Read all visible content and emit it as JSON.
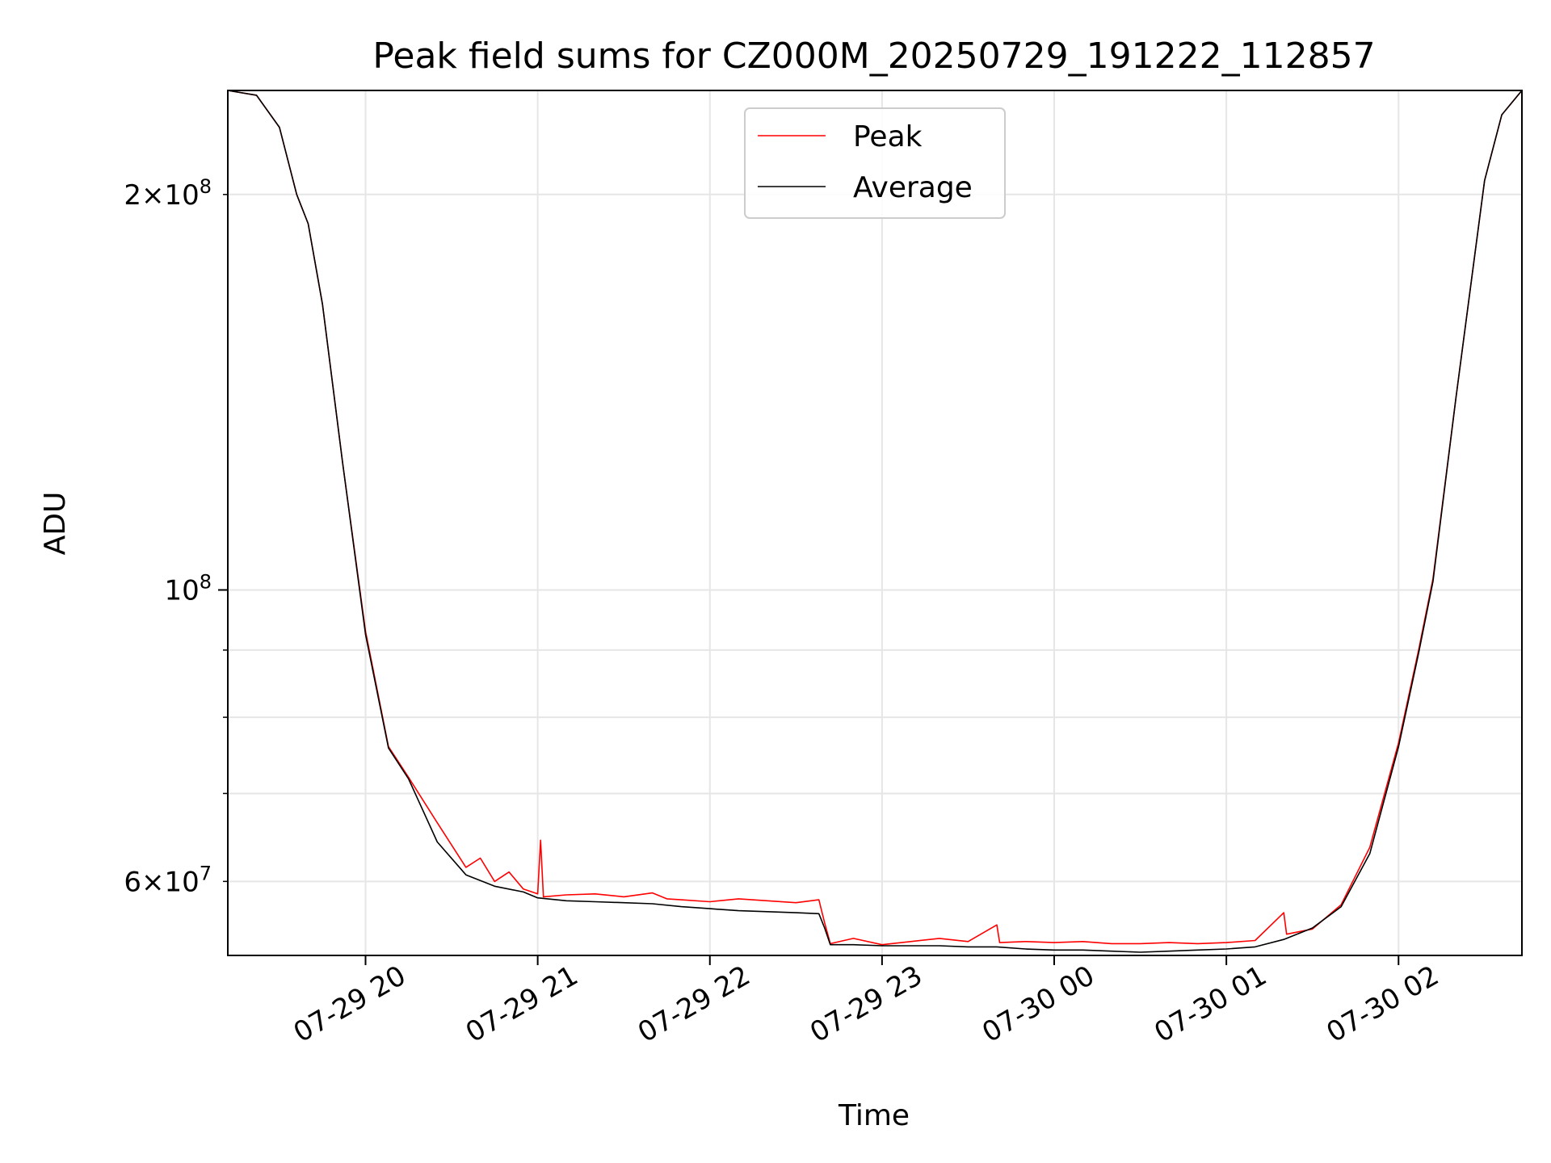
{
  "chart_data": {
    "type": "line",
    "title": "Peak field sums for CZ000M_20250729_191222_112857",
    "xlabel": "Time",
    "ylabel": "ADU",
    "x_axis": {
      "type": "time",
      "range": [
        "2025-07-29 19:12",
        "2025-07-30 02:43"
      ],
      "ticks": [
        {
          "value": "2025-07-29 20:00",
          "label": "07-29 20"
        },
        {
          "value": "2025-07-29 21:00",
          "label": "07-29 21"
        },
        {
          "value": "2025-07-29 22:00",
          "label": "07-29 22"
        },
        {
          "value": "2025-07-29 23:00",
          "label": "07-29 23"
        },
        {
          "value": "2025-07-30 00:00",
          "label": "07-30 00"
        },
        {
          "value": "2025-07-30 01:00",
          "label": "07-30 01"
        },
        {
          "value": "2025-07-30 02:00",
          "label": "07-30 02"
        }
      ]
    },
    "y_axis": {
      "scale": "log",
      "range": [
        52700000,
        240000000
      ],
      "major_ticks": [
        {
          "value": 100000000,
          "label_base": "10",
          "label_exp": "8"
        }
      ],
      "minor_labeled_ticks": [
        {
          "value": 60000000,
          "label_coef": "6",
          "label_base": "10",
          "label_exp": "7"
        },
        {
          "value": 200000000,
          "label_coef": "2",
          "label_base": "10",
          "label_exp": "8"
        }
      ],
      "minor_ticks": [
        60000000,
        70000000,
        80000000,
        90000000,
        200000000
      ]
    },
    "grid": true,
    "legend": {
      "placement": "upper center"
    },
    "series": [
      {
        "name": "Peak",
        "color": "#ff0000",
        "points": [
          [
            "2025-07-29 19:12",
            240000000
          ],
          [
            "2025-07-29 19:22",
            238000000
          ],
          [
            "2025-07-29 19:30",
            225000000
          ],
          [
            "2025-07-29 19:36",
            200000000
          ],
          [
            "2025-07-29 19:40",
            190000000
          ],
          [
            "2025-07-29 19:45",
            165000000
          ],
          [
            "2025-07-29 19:52",
            125000000
          ],
          [
            "2025-07-29 20:00",
            93000000
          ],
          [
            "2025-07-29 20:08",
            76000000
          ],
          [
            "2025-07-29 20:15",
            72000000
          ],
          [
            "2025-07-29 20:25",
            66500000
          ],
          [
            "2025-07-29 20:35",
            61500000
          ],
          [
            "2025-07-29 20:40",
            62500000
          ],
          [
            "2025-07-29 20:45",
            60000000
          ],
          [
            "2025-07-29 20:50",
            61000000
          ],
          [
            "2025-07-29 20:55",
            59200000
          ],
          [
            "2025-07-29 21:00",
            58700000
          ],
          [
            "2025-07-29 21:01",
            64500000
          ],
          [
            "2025-07-29 21:02",
            58400000
          ],
          [
            "2025-07-29 21:10",
            58600000
          ],
          [
            "2025-07-29 21:20",
            58700000
          ],
          [
            "2025-07-29 21:30",
            58400000
          ],
          [
            "2025-07-29 21:40",
            58800000
          ],
          [
            "2025-07-29 21:45",
            58200000
          ],
          [
            "2025-07-29 21:50",
            58100000
          ],
          [
            "2025-07-29 22:00",
            57900000
          ],
          [
            "2025-07-29 22:10",
            58200000
          ],
          [
            "2025-07-29 22:20",
            58000000
          ],
          [
            "2025-07-29 22:30",
            57800000
          ],
          [
            "2025-07-29 22:38",
            58100000
          ],
          [
            "2025-07-29 22:40",
            55800000
          ],
          [
            "2025-07-29 22:42",
            53800000
          ],
          [
            "2025-07-29 22:50",
            54300000
          ],
          [
            "2025-07-29 23:00",
            53700000
          ],
          [
            "2025-07-29 23:10",
            54000000
          ],
          [
            "2025-07-29 23:20",
            54300000
          ],
          [
            "2025-07-29 23:30",
            54000000
          ],
          [
            "2025-07-29 23:40",
            55600000
          ],
          [
            "2025-07-29 23:41",
            53900000
          ],
          [
            "2025-07-29 23:50",
            54000000
          ],
          [
            "2025-07-30 00:00",
            53900000
          ],
          [
            "2025-07-30 00:10",
            54000000
          ],
          [
            "2025-07-30 00:20",
            53800000
          ],
          [
            "2025-07-30 00:30",
            53800000
          ],
          [
            "2025-07-30 00:40",
            53900000
          ],
          [
            "2025-07-30 00:50",
            53800000
          ],
          [
            "2025-07-30 01:00",
            53900000
          ],
          [
            "2025-07-30 01:10",
            54100000
          ],
          [
            "2025-07-30 01:20",
            56800000
          ],
          [
            "2025-07-30 01:21",
            54700000
          ],
          [
            "2025-07-30 01:30",
            55200000
          ],
          [
            "2025-07-30 01:40",
            57600000
          ],
          [
            "2025-07-30 01:50",
            63700000
          ],
          [
            "2025-07-30 02:00",
            76500000
          ],
          [
            "2025-07-30 02:07",
            90000000
          ],
          [
            "2025-07-30 02:12",
            102000000
          ],
          [
            "2025-07-30 02:20",
            140000000
          ],
          [
            "2025-07-30 02:30",
            205000000
          ],
          [
            "2025-07-30 02:36",
            230000000
          ],
          [
            "2025-07-30 02:43",
            240000000
          ]
        ]
      },
      {
        "name": "Average",
        "color": "#000000",
        "points": [
          [
            "2025-07-29 19:12",
            240000000
          ],
          [
            "2025-07-29 19:22",
            238000000
          ],
          [
            "2025-07-29 19:30",
            225000000
          ],
          [
            "2025-07-29 19:36",
            200000000
          ],
          [
            "2025-07-29 19:40",
            190000000
          ],
          [
            "2025-07-29 19:45",
            165000000
          ],
          [
            "2025-07-29 19:52",
            125000000
          ],
          [
            "2025-07-29 20:00",
            92500000
          ],
          [
            "2025-07-29 20:08",
            75800000
          ],
          [
            "2025-07-29 20:15",
            71800000
          ],
          [
            "2025-07-29 20:25",
            64300000
          ],
          [
            "2025-07-29 20:35",
            60700000
          ],
          [
            "2025-07-29 20:45",
            59500000
          ],
          [
            "2025-07-29 20:55",
            58900000
          ],
          [
            "2025-07-29 21:00",
            58300000
          ],
          [
            "2025-07-29 21:10",
            58000000
          ],
          [
            "2025-07-29 21:20",
            57900000
          ],
          [
            "2025-07-29 21:30",
            57800000
          ],
          [
            "2025-07-29 21:40",
            57700000
          ],
          [
            "2025-07-29 21:50",
            57400000
          ],
          [
            "2025-07-29 22:00",
            57200000
          ],
          [
            "2025-07-29 22:10",
            57000000
          ],
          [
            "2025-07-29 22:20",
            56900000
          ],
          [
            "2025-07-29 22:30",
            56800000
          ],
          [
            "2025-07-29 22:38",
            56700000
          ],
          [
            "2025-07-29 22:40",
            55300000
          ],
          [
            "2025-07-29 22:42",
            53700000
          ],
          [
            "2025-07-29 22:50",
            53700000
          ],
          [
            "2025-07-29 23:00",
            53600000
          ],
          [
            "2025-07-29 23:10",
            53600000
          ],
          [
            "2025-07-29 23:20",
            53600000
          ],
          [
            "2025-07-29 23:30",
            53500000
          ],
          [
            "2025-07-29 23:40",
            53500000
          ],
          [
            "2025-07-29 23:50",
            53300000
          ],
          [
            "2025-07-30 00:00",
            53200000
          ],
          [
            "2025-07-30 00:10",
            53200000
          ],
          [
            "2025-07-30 00:20",
            53100000
          ],
          [
            "2025-07-30 00:30",
            53000000
          ],
          [
            "2025-07-30 00:40",
            53100000
          ],
          [
            "2025-07-30 00:50",
            53200000
          ],
          [
            "2025-07-30 01:00",
            53300000
          ],
          [
            "2025-07-30 01:10",
            53500000
          ],
          [
            "2025-07-30 01:20",
            54200000
          ],
          [
            "2025-07-30 01:30",
            55300000
          ],
          [
            "2025-07-30 01:40",
            57400000
          ],
          [
            "2025-07-30 01:50",
            63000000
          ],
          [
            "2025-07-30 02:00",
            76000000
          ],
          [
            "2025-07-30 02:07",
            89500000
          ],
          [
            "2025-07-30 02:12",
            101500000
          ],
          [
            "2025-07-30 02:20",
            140000000
          ],
          [
            "2025-07-30 02:30",
            205000000
          ],
          [
            "2025-07-30 02:36",
            230000000
          ],
          [
            "2025-07-30 02:43",
            240000000
          ]
        ]
      }
    ]
  }
}
